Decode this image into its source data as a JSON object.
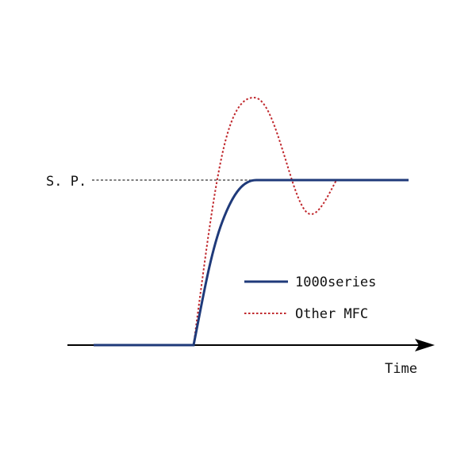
{
  "diagram": {
    "setpoint_label": "S. P.",
    "x_axis_label": "Time",
    "legend": [
      {
        "label": "1000series",
        "color": "#1f3a7a",
        "style": "solid"
      },
      {
        "label": "Other MFC",
        "color": "#c0282d",
        "style": "dotted"
      }
    ],
    "axis_color": "#000000",
    "setpoint_line_color": "#333333"
  }
}
